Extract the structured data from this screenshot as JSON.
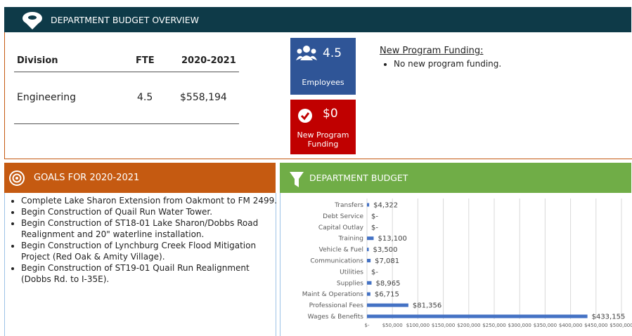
{
  "overview": {
    "title": "DEPARTMENT BUDGET OVERVIEW",
    "table": {
      "header": [
        "Division",
        "FTE",
        "2020-2021"
      ],
      "rows": [
        [
          "Engineering",
          "4.5",
          "$558,194"
        ]
      ]
    },
    "employees": {
      "value": "4.5",
      "label": "Employees"
    },
    "new_funding": {
      "value": "$0",
      "label": "New Program Funding"
    },
    "funding_note": {
      "title": "New Program Funding:",
      "items": [
        "No new program funding."
      ]
    }
  },
  "goals": {
    "title": "GOALS FOR 2020-2021",
    "items": [
      "Complete Lake Sharon Extension from Oakmont to FM 2499.",
      "Begin Construction of Quail Run Water Tower.",
      "Begin Construction of ST18-01 Lake Sharon/Dobbs Road Realignment and 20\" waterline installation.",
      "Begin Construction of Lynchburg Creek Flood Mitigation Project (Red Oak & Amity Village).",
      "Begin Construction of ST19-01 Quail Run Realignment (Dobbs Rd. to I-35E)."
    ]
  },
  "chart_data": {
    "type": "hbar",
    "title": "DEPARTMENT BUDGET",
    "color": "#4472c4",
    "grid": true,
    "categories": [
      "Transfers",
      "Debt Service",
      "Capital Outlay",
      "Training",
      "Vehicle & Fuel",
      "Communications",
      "Utilities",
      "Supplies",
      "Maint & Operations",
      "Professional Fees",
      "Wages & Benefits"
    ],
    "values": [
      4322,
      0,
      0,
      13100,
      3500,
      7081,
      0,
      8965,
      6715,
      81356,
      433155
    ],
    "value_labels": [
      "$4,322",
      "$-",
      "$-",
      "$13,100",
      "$3,500",
      "$7,081",
      "$-",
      "$8,965",
      "$6,715",
      "$81,356",
      "$433,155"
    ],
    "xlim": [
      0,
      500000
    ],
    "xticks": [
      {
        "value": 0,
        "label": "$-"
      },
      {
        "value": 50000,
        "label": "$50,000"
      },
      {
        "value": 100000,
        "label": "$100,000"
      },
      {
        "value": 150000,
        "label": "$150,000"
      },
      {
        "value": 200000,
        "label": "$200,000"
      },
      {
        "value": 250000,
        "label": "$250,000"
      },
      {
        "value": 300000,
        "label": "$300,000"
      },
      {
        "value": 350000,
        "label": "$350,000"
      },
      {
        "value": 400000,
        "label": "$400,000"
      },
      {
        "value": 450000,
        "label": "$450,000"
      },
      {
        "value": 500000,
        "label": "$500,000"
      }
    ]
  }
}
